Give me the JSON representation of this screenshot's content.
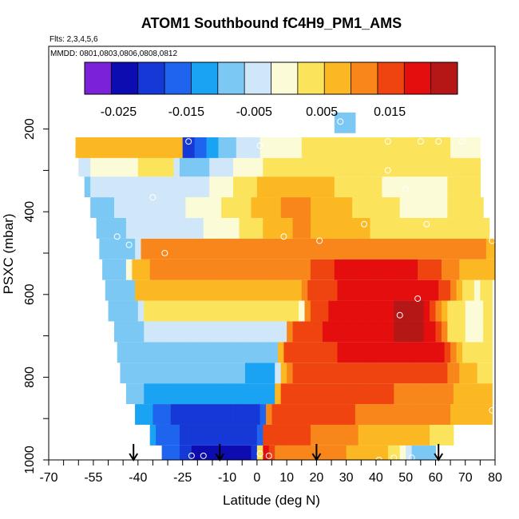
{
  "chart_data": {
    "type": "heatmap",
    "title": "ATOM1 Southbound fC4H9_PM1_AMS",
    "subtitle_flights": "Flts: 2,3,4,5,6",
    "subtitle_dates": "MMDD: 0801,0803,0806,0808,0812",
    "xlabel": "Latitude (deg N)",
    "ylabel": "PSXC (mbar)",
    "xlim": [
      -70,
      80
    ],
    "ylim": [
      1000,
      0
    ],
    "x_tick_labels": [
      "-70",
      "-55",
      "-40",
      "-25",
      "-10",
      "0",
      "10",
      "20",
      "30",
      "40",
      "50",
      "60",
      "70",
      "80"
    ],
    "x_tick_values": [
      -70,
      -55,
      -40,
      -25,
      -10,
      0,
      10,
      20,
      30,
      40,
      50,
      60,
      70,
      80
    ],
    "y_tick_labels": [
      "1000",
      "800",
      "600",
      "400",
      "200"
    ],
    "y_tick_values": [
      1000,
      800,
      600,
      400,
      200
    ],
    "colorbar": {
      "range": [
        -0.03,
        0.025
      ],
      "tick_labels": [
        "-0.025",
        "-0.015",
        "-0.005",
        "0.005",
        "0.015"
      ],
      "tick_values": [
        -0.025,
        -0.015,
        -0.005,
        0.005,
        0.015
      ],
      "colors": [
        "#7b22d8",
        "#0c0cb0",
        "#1538d6",
        "#1f64ee",
        "#1aa3f2",
        "#7cc8f4",
        "#cfe7f8",
        "#fbfbd7",
        "#fbe45c",
        "#fbb822",
        "#f8861a",
        "#ef4410",
        "#e40e0e",
        "#b51616"
      ]
    },
    "rows": [
      {
        "p": 990,
        "xl": -32,
        "xr": 60,
        "stops": [
          [
            -32,
            -0.014
          ],
          [
            -22,
            -0.022
          ],
          [
            -10,
            -0.026
          ],
          [
            -2,
            -0.026
          ],
          [
            0,
            -0.012
          ],
          [
            2,
            0.016
          ],
          [
            3,
            0.018
          ],
          [
            8,
            0.012
          ],
          [
            20,
            0.012
          ],
          [
            30,
            0.009
          ],
          [
            40,
            0.007
          ],
          [
            48,
            0.003
          ],
          [
            53,
            -0.007
          ],
          [
            58,
            -0.008
          ],
          [
            60,
            -0.008
          ]
        ]
      },
      {
        "p": 940,
        "xl": -36,
        "xr": 66,
        "stops": [
          [
            -36,
            -0.013
          ],
          [
            -22,
            -0.02
          ],
          [
            -10,
            -0.021
          ],
          [
            0,
            -0.018
          ],
          [
            2,
            -0.015
          ],
          [
            3,
            0.015
          ],
          [
            8,
            0.015
          ],
          [
            20,
            0.013
          ],
          [
            35,
            0.009
          ],
          [
            50,
            0.007
          ],
          [
            60,
            0.005
          ],
          [
            66,
            0.004
          ]
        ]
      },
      {
        "p": 890,
        "xl": -41,
        "xr": 79,
        "stops": [
          [
            -41,
            -0.011
          ],
          [
            -28,
            -0.019
          ],
          [
            -10,
            -0.019
          ],
          [
            3,
            -0.018
          ],
          [
            4,
            0.013
          ],
          [
            8,
            0.016
          ],
          [
            20,
            0.016
          ],
          [
            35,
            0.013
          ],
          [
            50,
            0.012
          ],
          [
            62,
            0.01
          ],
          [
            72,
            0.008
          ],
          [
            79,
            0.008
          ]
        ]
      },
      {
        "p": 840,
        "xl": -44,
        "xr": 79,
        "stops": [
          [
            -44,
            -0.009
          ],
          [
            -30,
            -0.012
          ],
          [
            -10,
            -0.013
          ],
          [
            5,
            -0.013
          ],
          [
            7,
            0.008
          ],
          [
            10,
            0.016
          ],
          [
            25,
            0.016
          ],
          [
            40,
            0.014
          ],
          [
            55,
            0.012
          ],
          [
            65,
            0.01
          ],
          [
            72,
            0.007
          ],
          [
            79,
            0.007
          ]
        ]
      },
      {
        "p": 790,
        "xl": -46,
        "xr": 79,
        "stops": [
          [
            -46,
            -0.008
          ],
          [
            -30,
            -0.01
          ],
          [
            -10,
            -0.01
          ],
          [
            6,
            -0.011
          ],
          [
            8,
            0.002
          ],
          [
            10,
            0.013
          ],
          [
            25,
            0.016
          ],
          [
            40,
            0.016
          ],
          [
            55,
            0.015
          ],
          [
            65,
            0.013
          ],
          [
            72,
            0.006
          ],
          [
            79,
            0.004
          ]
        ]
      },
      {
        "p": 740,
        "xl": -47,
        "xr": 79,
        "stops": [
          [
            -47,
            -0.008
          ],
          [
            -30,
            -0.008
          ],
          [
            -10,
            -0.007
          ],
          [
            6,
            -0.008
          ],
          [
            8,
            0.006
          ],
          [
            10,
            0.015
          ],
          [
            25,
            0.017
          ],
          [
            40,
            0.019
          ],
          [
            55,
            0.02
          ],
          [
            62,
            0.018
          ],
          [
            70,
            0.005
          ],
          [
            79,
            0.003
          ]
        ]
      },
      {
        "p": 690,
        "xl": -48,
        "xr": 79,
        "stops": [
          [
            -48,
            -0.009
          ],
          [
            -38,
            -0.008
          ],
          [
            -36,
            -0.003
          ],
          [
            -20,
            -0.003
          ],
          [
            0,
            -0.003
          ],
          [
            10,
            -0.003
          ],
          [
            11,
            0.013
          ],
          [
            25,
            0.018
          ],
          [
            45,
            0.021
          ],
          [
            55,
            0.022
          ],
          [
            60,
            0.018
          ],
          [
            65,
            0.005
          ],
          [
            72,
            0.0
          ],
          [
            79,
            0.002
          ]
        ]
      },
      {
        "p": 640,
        "xl": -50,
        "xr": 79,
        "stops": [
          [
            -50,
            -0.009
          ],
          [
            -40,
            -0.008
          ],
          [
            -38,
            0.003
          ],
          [
            -20,
            0.003
          ],
          [
            10,
            0.002
          ],
          [
            16,
            0.001
          ],
          [
            17,
            0.013
          ],
          [
            30,
            0.02
          ],
          [
            45,
            0.021
          ],
          [
            55,
            0.022
          ],
          [
            58,
            0.018
          ],
          [
            65,
            0.004
          ],
          [
            72,
            0.0
          ],
          [
            79,
            0.002
          ]
        ]
      },
      {
        "p": 590,
        "xl": -51,
        "xr": 79,
        "stops": [
          [
            -51,
            -0.009
          ],
          [
            -42,
            -0.008
          ],
          [
            -40,
            0.007
          ],
          [
            -20,
            0.008
          ],
          [
            0,
            0.008
          ],
          [
            15,
            0.007
          ],
          [
            18,
            0.014
          ],
          [
            30,
            0.018
          ],
          [
            45,
            0.02
          ],
          [
            55,
            0.02
          ],
          [
            62,
            0.017
          ],
          [
            68,
            0.007
          ],
          [
            74,
            0.001
          ],
          [
            79,
            0.003
          ]
        ]
      },
      {
        "p": 540,
        "xl": -52,
        "xr": 80,
        "stops": [
          [
            -52,
            -0.009
          ],
          [
            -44,
            -0.008
          ],
          [
            -42,
            0.006
          ],
          [
            -30,
            0.012
          ],
          [
            -15,
            0.012
          ],
          [
            0,
            0.012
          ],
          [
            15,
            0.012
          ],
          [
            20,
            0.014
          ],
          [
            30,
            0.019
          ],
          [
            42,
            0.019
          ],
          [
            55,
            0.017
          ],
          [
            65,
            0.012
          ],
          [
            72,
            0.007
          ],
          [
            80,
            0.008
          ]
        ]
      },
      {
        "p": 490,
        "xl": -53,
        "xr": 80,
        "stops": [
          [
            -53,
            -0.008
          ],
          [
            -45,
            -0.008
          ],
          [
            -40,
            -0.006
          ],
          [
            -38,
            0.013
          ],
          [
            -25,
            0.013
          ],
          [
            -10,
            0.013
          ],
          [
            10,
            0.013
          ],
          [
            30,
            0.013
          ],
          [
            45,
            0.013
          ],
          [
            60,
            0.012
          ],
          [
            70,
            0.01
          ],
          [
            80,
            0.009
          ]
        ]
      },
      {
        "p": 440,
        "xl": -54,
        "xr": 78,
        "stops": [
          [
            -54,
            -0.008
          ],
          [
            -40,
            -0.006
          ],
          [
            -32,
            -0.005
          ],
          [
            -20,
            -0.003
          ],
          [
            -10,
            0.0
          ],
          [
            0,
            0.004
          ],
          [
            8,
            0.008
          ],
          [
            15,
            0.01
          ],
          [
            25,
            0.008
          ],
          [
            35,
            0.006
          ],
          [
            45,
            0.003
          ],
          [
            55,
            0.002
          ],
          [
            65,
            0.003
          ],
          [
            78,
            0.003
          ]
        ]
      },
      {
        "p": 390,
        "xl": -56,
        "xr": 76,
        "stops": [
          [
            -56,
            -0.008
          ],
          [
            -45,
            -0.006
          ],
          [
            -35,
            -0.004
          ],
          [
            -20,
            -0.002
          ],
          [
            -10,
            0.002
          ],
          [
            0,
            0.006
          ],
          [
            10,
            0.01
          ],
          [
            20,
            0.009
          ],
          [
            30,
            0.006
          ],
          [
            40,
            0.003
          ],
          [
            50,
            0.001
          ],
          [
            60,
            0.001
          ],
          [
            70,
            0.002
          ],
          [
            76,
            0.002
          ]
        ]
      },
      {
        "p": 340,
        "xl": -58,
        "xr": 75,
        "stops": [
          [
            -58,
            -0.007
          ],
          [
            -50,
            -0.005
          ],
          [
            -40,
            -0.003
          ],
          [
            -30,
            -0.003
          ],
          [
            -25,
            -0.006
          ],
          [
            -20,
            -0.004
          ],
          [
            -10,
            0.0
          ],
          [
            0,
            0.005
          ],
          [
            10,
            0.009
          ],
          [
            20,
            0.008
          ],
          [
            30,
            0.004
          ],
          [
            40,
            0.002
          ],
          [
            50,
            0.0
          ],
          [
            60,
            0.001
          ],
          [
            70,
            0.002
          ],
          [
            75,
            0.002
          ]
        ]
      },
      {
        "p": 290,
        "xl": -60,
        "xr": 75,
        "stops": [
          [
            -60,
            -0.005
          ],
          [
            -50,
            0.0
          ],
          [
            -35,
            0.002
          ],
          [
            -28,
            0.003
          ],
          [
            -26,
            -0.01
          ],
          [
            -20,
            -0.008
          ],
          [
            -10,
            -0.003
          ],
          [
            0,
            0.001
          ],
          [
            10,
            0.005
          ],
          [
            20,
            0.005
          ],
          [
            30,
            0.003
          ],
          [
            40,
            0.002
          ],
          [
            50,
            0.003
          ],
          [
            60,
            0.003
          ],
          [
            70,
            0.002
          ],
          [
            75,
            0.002
          ]
        ]
      },
      {
        "p": 245,
        "xl": -61,
        "xr": 75,
        "stops": [
          [
            -61,
            0.008
          ],
          [
            -45,
            0.008
          ],
          [
            -30,
            0.008
          ],
          [
            -26,
            0.008
          ],
          [
            -24,
            -0.022
          ],
          [
            -20,
            -0.016
          ],
          [
            -10,
            -0.008
          ],
          [
            0,
            -0.003
          ],
          [
            10,
            0.001
          ],
          [
            20,
            0.002
          ],
          [
            30,
            0.002
          ],
          [
            40,
            0.002
          ],
          [
            50,
            0.002
          ],
          [
            60,
            0.002
          ],
          [
            70,
            0.001
          ],
          [
            75,
            0.001
          ]
        ]
      },
      {
        "p": 185,
        "xl": 26,
        "xr": 33,
        "stops": [
          [
            26,
            -0.009
          ],
          [
            33,
            -0.009
          ]
        ]
      }
    ],
    "points": [
      {
        "x": -62,
        "p": 230
      },
      {
        "x": -23,
        "p": 230
      },
      {
        "x": 1,
        "p": 240
      },
      {
        "x": 44,
        "p": 230
      },
      {
        "x": 55,
        "p": 230
      },
      {
        "x": 61,
        "p": 230
      },
      {
        "x": 69,
        "p": 230
      },
      {
        "x": 36,
        "p": 200
      },
      {
        "x": 76,
        "p": 260
      },
      {
        "x": 44,
        "p": 300
      },
      {
        "x": -35,
        "p": 365
      },
      {
        "x": 50,
        "p": 345
      },
      {
        "x": 57,
        "p": 430
      },
      {
        "x": -47,
        "p": 460
      },
      {
        "x": 36,
        "p": 430
      },
      {
        "x": 9,
        "p": 460
      },
      {
        "x": -43,
        "p": 480
      },
      {
        "x": -31,
        "p": 500
      },
      {
        "x": 21,
        "p": 470
      },
      {
        "x": 79,
        "p": 470
      },
      {
        "x": 54,
        "p": 610
      },
      {
        "x": 48,
        "p": 650
      },
      {
        "x": 79,
        "p": 880
      },
      {
        "x": -48,
        "p": 780
      },
      {
        "x": -22,
        "p": 990
      },
      {
        "x": 1,
        "p": 985
      },
      {
        "x": 4,
        "p": 990
      },
      {
        "x": 41,
        "p": 1000
      },
      {
        "x": 46,
        "p": 995
      },
      {
        "x": 52,
        "p": 995
      },
      {
        "x": -18,
        "p": 990
      },
      {
        "x": 28,
        "p": 182
      }
    ],
    "arrows_lat": [
      -41.5,
      -12.5,
      20,
      61
    ]
  }
}
